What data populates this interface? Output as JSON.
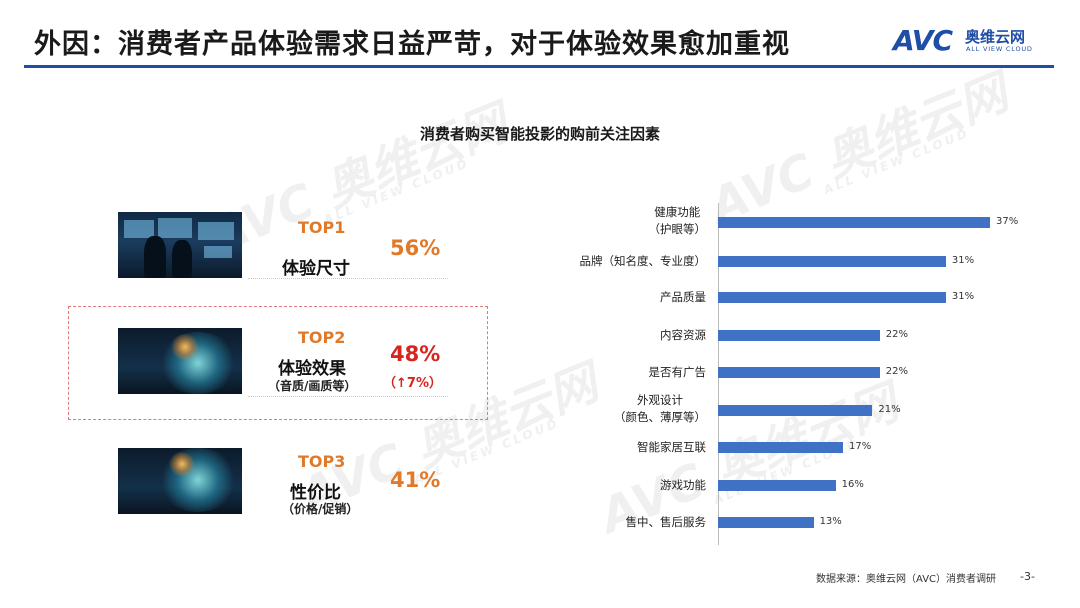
{
  "header": {
    "title": "外因：消费者产品体验需求日益严苛，对于体验效果愈加重视",
    "logo_mark": "AVC",
    "logo_cn": "奥维云网",
    "logo_en": "ALL VIEW CLOUD",
    "accent_color": "#1f4ea6"
  },
  "watermark": {
    "mark": "AVC",
    "cn": "奥维云网",
    "en": "ALL VIEW CLOUD"
  },
  "tops": [
    {
      "rank": "TOP1",
      "name": "体验尺寸",
      "sub": "",
      "pct": "56%",
      "delta": "",
      "image": "people-watching-screens-image"
    },
    {
      "rank": "TOP2",
      "name": "体验效果",
      "sub": "（音质/画质等）",
      "pct": "48%",
      "delta": "（↑7%）",
      "image": "wave-projection-image",
      "highlighted": true
    },
    {
      "rank": "TOP3",
      "name": "性价比",
      "sub": "（价格/促销）",
      "pct": "41%",
      "delta": "",
      "image": "wave-projection-image"
    }
  ],
  "chart_data": {
    "type": "bar",
    "orientation": "horizontal",
    "title": "消费者购买智能投影的购前关注因素",
    "categories": [
      "健康功能\n（护眼等）",
      "品牌（知名度、专业度）",
      "产品质量",
      "内容资源",
      "是否有广告",
      "外观设计\n（颜色、薄厚等）",
      "智能家居互联",
      "游戏功能",
      "售中、售后服务"
    ],
    "values": [
      37,
      31,
      31,
      22,
      22,
      21,
      17,
      16,
      13
    ],
    "value_labels": [
      "37%",
      "31%",
      "31%",
      "22%",
      "22%",
      "21%",
      "17%",
      "16%",
      "13%"
    ],
    "unit": "%",
    "bar_color": "#3f72c4",
    "grid": false
  },
  "footer": {
    "source": "数据来源：奥维云网（AVC）消费者调研",
    "page": "-3-"
  }
}
